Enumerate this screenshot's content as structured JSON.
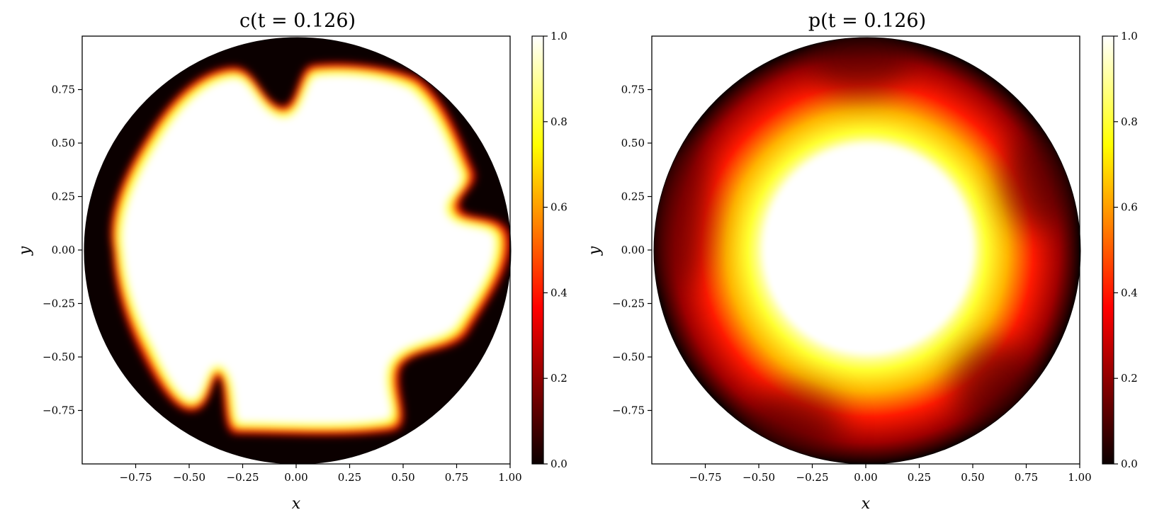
{
  "chart_data": [
    {
      "type": "heatmap",
      "title": "c(t = 0.126)",
      "xlabel": "x",
      "ylabel": "y",
      "xlim": [
        -1.0,
        1.0
      ],
      "ylim": [
        -1.0,
        1.0
      ],
      "xticks": [
        -0.75,
        -0.5,
        -0.25,
        0.0,
        0.25,
        0.5,
        0.75,
        1.0
      ],
      "xtick_labels": [
        "−0.75",
        "−0.50",
        "−0.25",
        "0.00",
        "0.25",
        "0.50",
        "0.75",
        "1.00"
      ],
      "yticks": [
        0.75,
        0.5,
        0.25,
        0.0,
        -0.25,
        -0.5,
        -0.75
      ],
      "ytick_labels": [
        "0.75",
        "0.50",
        "0.25",
        "0.00",
        "−0.25",
        "−0.50",
        "−0.75"
      ],
      "colormap": "hot",
      "colorbar": {
        "range": [
          0.0,
          1.0
        ],
        "ticks": [
          0.0,
          0.2,
          0.4,
          0.6,
          0.8,
          1.0
        ],
        "tick_labels": [
          "0.0",
          "0.2",
          "0.4",
          "0.6",
          "0.8",
          "1.0"
        ]
      },
      "domain": "unit disk",
      "field_description": "concentration ~1 inside a wavy interface (radius ~0.8 with six fingers), ~0 near the boundary"
    },
    {
      "type": "heatmap",
      "title": "p(t = 0.126)",
      "xlabel": "x",
      "ylabel": "y",
      "xlim": [
        -1.0,
        1.0
      ],
      "ylim": [
        -1.0,
        1.0
      ],
      "xticks": [
        -0.75,
        -0.5,
        -0.25,
        0.0,
        0.25,
        0.5,
        0.75,
        1.0
      ],
      "xtick_labels": [
        "−0.75",
        "−0.50",
        "−0.25",
        "0.00",
        "0.25",
        "0.50",
        "0.75",
        "1.00"
      ],
      "yticks": [
        0.75,
        0.5,
        0.25,
        0.0,
        -0.25,
        -0.5,
        -0.75
      ],
      "ytick_labels": [
        "0.75",
        "0.50",
        "0.25",
        "0.00",
        "−0.25",
        "−0.50",
        "−0.75"
      ],
      "colormap": "hot",
      "colorbar": {
        "range": [
          0.0,
          1.0
        ],
        "ticks": [
          0.0,
          0.2,
          0.4,
          0.6,
          0.8,
          1.0
        ],
        "tick_labels": [
          "0.0",
          "0.2",
          "0.4",
          "0.6",
          "0.8",
          "1.0"
        ]
      },
      "domain": "unit disk",
      "field_description": "pressure ~1 in the central region (radius ~0.5), decreasing radially to 0 at the boundary"
    }
  ],
  "colors": {
    "hot_stops": [
      "#0b0000",
      "#ff0000",
      "#ffff00",
      "#ffffff"
    ]
  }
}
